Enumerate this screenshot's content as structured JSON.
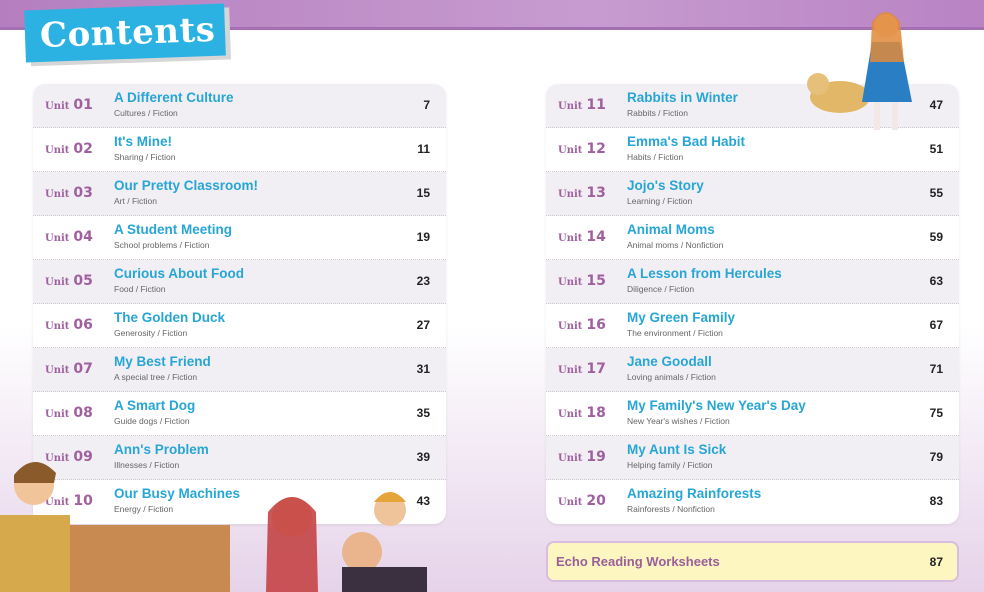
{
  "title": "Contents",
  "unit_label": "Unit",
  "left_units": [
    {
      "num": "01",
      "title": "A Different Culture",
      "subtitle": "Cultures / Fiction",
      "page": "7"
    },
    {
      "num": "02",
      "title": "It's Mine!",
      "subtitle": "Sharing / Fiction",
      "page": "11"
    },
    {
      "num": "03",
      "title": "Our Pretty Classroom!",
      "subtitle": "Art / Fiction",
      "page": "15"
    },
    {
      "num": "04",
      "title": "A Student Meeting",
      "subtitle": "School problems / Fiction",
      "page": "19"
    },
    {
      "num": "05",
      "title": "Curious About Food",
      "subtitle": "Food / Fiction",
      "page": "23"
    },
    {
      "num": "06",
      "title": "The Golden Duck",
      "subtitle": "Generosity / Fiction",
      "page": "27"
    },
    {
      "num": "07",
      "title": "My Best Friend",
      "subtitle": "A special tree / Fiction",
      "page": "31"
    },
    {
      "num": "08",
      "title": "A Smart Dog",
      "subtitle": "Guide dogs / Fiction",
      "page": "35"
    },
    {
      "num": "09",
      "title": "Ann's Problem",
      "subtitle": "Illnesses / Fiction",
      "page": "39"
    },
    {
      "num": "10",
      "title": "Our Busy Machines",
      "subtitle": "Energy / Fiction",
      "page": "43"
    }
  ],
  "right_units": [
    {
      "num": "11",
      "title": "Rabbits in Winter",
      "subtitle": "Rabbits / Fiction",
      "page": "47"
    },
    {
      "num": "12",
      "title": "Emma's Bad Habit",
      "subtitle": "Habits / Fiction",
      "page": "51"
    },
    {
      "num": "13",
      "title": "Jojo's Story",
      "subtitle": "Learning / Fiction",
      "page": "55"
    },
    {
      "num": "14",
      "title": "Animal Moms",
      "subtitle": "Animal moms / Nonfiction",
      "page": "59"
    },
    {
      "num": "15",
      "title": "A Lesson from Hercules",
      "subtitle": "Diligence / Fiction",
      "page": "63"
    },
    {
      "num": "16",
      "title": "My Green Family",
      "subtitle": "The environment / Fiction",
      "page": "67"
    },
    {
      "num": "17",
      "title": "Jane Goodall",
      "subtitle": "Loving animals / Fiction",
      "page": "71"
    },
    {
      "num": "18",
      "title": "My Family's New Year's Day",
      "subtitle": "New Year's wishes / Fiction",
      "page": "75"
    },
    {
      "num": "19",
      "title": "My Aunt Is Sick",
      "subtitle": "Helping family / Fiction",
      "page": "79"
    },
    {
      "num": "20",
      "title": "Amazing Rainforests",
      "subtitle": "Rainforests / Nonfiction",
      "page": "83"
    }
  ],
  "worksheets": {
    "title": "Echo Reading Worksheets",
    "page": "87"
  },
  "colors": {
    "title_tag": "#2bb2e3",
    "unit": "#a0609f",
    "entry_title": "#27a6d6",
    "band": "#b57fbf",
    "worksheet_bg": "#fdf6c0"
  }
}
